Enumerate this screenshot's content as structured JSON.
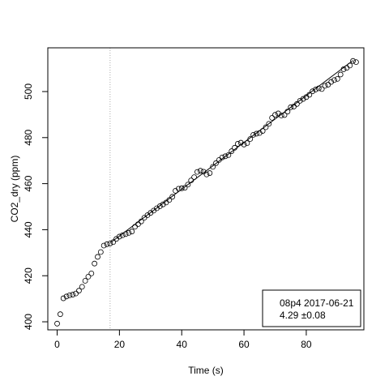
{
  "chart_data": {
    "type": "scatter",
    "title": "",
    "xlabel": "Time (s)",
    "ylabel": "CO2_dry (ppm)",
    "xlim": [
      -3,
      98.5
    ],
    "ylim": [
      396.5,
      519
    ],
    "x_ticks": [
      0,
      20,
      40,
      60,
      80
    ],
    "y_ticks": [
      400,
      420,
      440,
      460,
      480,
      500
    ],
    "grid": false,
    "vertical_reference_line": {
      "x": 17,
      "style": "dotted",
      "color": "#aaaaaa"
    },
    "points": {
      "marker": "open-circle",
      "x": [
        0,
        1,
        2,
        3,
        4,
        5,
        6,
        7,
        8,
        9,
        10,
        11,
        12,
        13,
        14,
        15,
        16,
        17,
        18,
        19,
        20,
        21,
        22,
        23,
        24,
        25,
        26,
        27,
        28,
        29,
        30,
        31,
        32,
        33,
        34,
        35,
        36,
        37,
        38,
        39,
        40,
        41,
        42,
        43,
        44,
        45,
        46,
        47,
        48,
        49,
        50,
        51,
        52,
        53,
        54,
        55,
        56,
        57,
        58,
        59,
        60,
        61,
        62,
        63,
        64,
        65,
        66,
        67,
        68,
        69,
        70,
        71,
        72,
        73,
        74,
        75,
        76,
        77,
        78,
        79,
        80,
        81,
        82,
        83,
        84,
        85,
        86,
        87,
        88,
        89,
        90,
        91,
        92,
        93,
        94,
        95,
        96
      ],
      "y": [
        399.2,
        403.3,
        410.2,
        411.0,
        411.5,
        411.8,
        412.3,
        413.5,
        415.2,
        417.8,
        419.6,
        421.0,
        425.3,
        428.2,
        430.3,
        433.1,
        433.7,
        434.0,
        434.6,
        436.0,
        437.0,
        437.6,
        438.1,
        438.6,
        439.2,
        441.3,
        442.4,
        443.6,
        445.2,
        446.3,
        447.3,
        448.3,
        449.3,
        450.2,
        451.0,
        451.8,
        452.9,
        454.3,
        456.9,
        457.8,
        458.0,
        458.2,
        459.6,
        461.4,
        462.8,
        465.1,
        465.6,
        465.2,
        464.0,
        464.6,
        467.3,
        468.9,
        470.3,
        471.4,
        471.9,
        472.4,
        474.1,
        475.6,
        477.3,
        477.8,
        477.0,
        477.6,
        479.4,
        481.2,
        481.7,
        482.0,
        482.9,
        484.5,
        486.0,
        488.6,
        489.9,
        490.5,
        489.6,
        489.8,
        491.3,
        493.2,
        493.5,
        494.6,
        496.0,
        496.8,
        497.6,
        498.6,
        500.1,
        500.9,
        501.4,
        501.1,
        502.5,
        503.0,
        504.2,
        505.0,
        505.5,
        507.4,
        509.7,
        510.3,
        511.3,
        513.3,
        512.8
      ]
    },
    "fit_line": {
      "x": [
        17,
        95
      ],
      "y": [
        434.2,
        513.5
      ]
    },
    "legend": {
      "placement": "bottom-right",
      "lines": [
        "08p4 2017-06-21",
        "4.29 ±0.08"
      ]
    }
  }
}
